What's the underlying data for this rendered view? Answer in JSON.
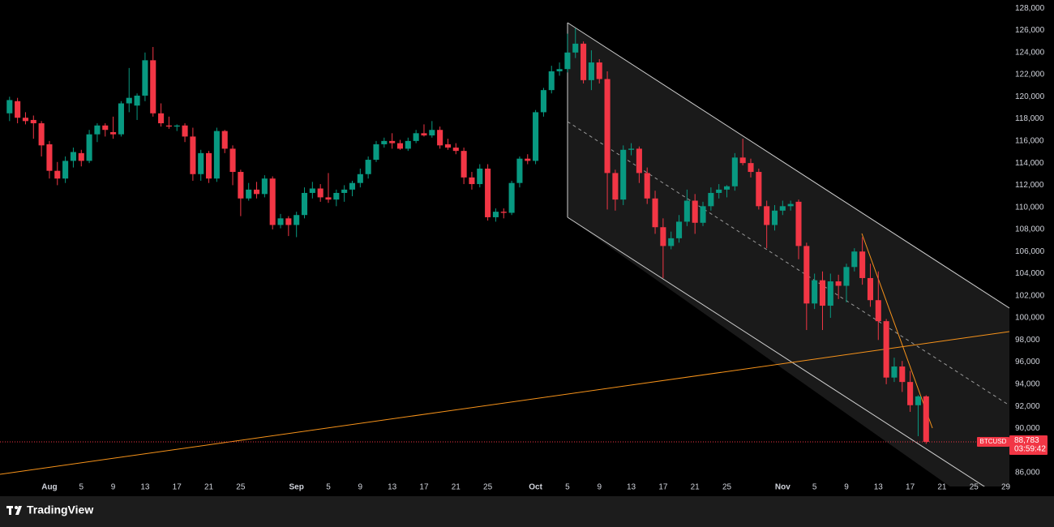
{
  "chart_data": {
    "type": "candlestick",
    "symbol": "BTCUSD",
    "last_price": {
      "value": 88783,
      "label": "88,783"
    },
    "countdown": "03:59:42",
    "up_color": "#089981",
    "down_color": "#f23645",
    "x": [
      -5,
      -4,
      -3,
      -2,
      -1,
      0,
      1,
      2,
      3,
      4,
      5,
      6,
      7,
      8,
      9,
      10,
      11,
      12,
      13,
      14,
      15,
      16,
      17,
      18,
      19,
      20,
      21,
      22,
      23,
      24,
      25,
      26,
      27,
      28,
      29,
      30,
      31,
      32,
      33,
      34,
      35,
      36,
      37,
      38,
      39,
      40,
      41,
      42,
      43,
      44,
      45,
      46,
      47,
      48,
      49,
      50,
      51,
      52,
      53,
      54,
      55,
      56,
      57,
      58,
      59,
      60,
      61,
      62,
      63,
      64,
      65,
      66,
      67,
      68,
      69,
      70,
      71,
      72,
      73,
      74,
      75,
      76,
      77,
      78,
      79,
      80,
      81,
      82,
      83,
      84,
      85,
      86,
      87,
      88,
      89,
      90,
      91,
      92,
      93,
      94,
      95,
      96,
      97,
      98,
      99,
      100,
      101,
      102,
      103,
      104,
      105,
      106,
      107,
      108,
      109,
      110
    ],
    "open": [
      118500,
      119600,
      118100,
      117900,
      117600,
      115700,
      113300,
      112600,
      114200,
      114900,
      114200,
      116600,
      117400,
      116800,
      116600,
      119400,
      119200,
      120100,
      123300,
      118500,
      117400,
      117300,
      117400,
      116400,
      113000,
      114900,
      112600,
      116900,
      115300,
      113200,
      110800,
      111600,
      111200,
      112600,
      108400,
      109000,
      108400,
      109300,
      111300,
      111700,
      110900,
      110700,
      111300,
      111600,
      112200,
      113000,
      114300,
      115700,
      116000,
      115800,
      115300,
      116000,
      116700,
      116500,
      117000,
      115700,
      115400,
      115100,
      112700,
      112100,
      113500,
      109100,
      109600,
      109500,
      112200,
      114400,
      114200,
      118600,
      120600,
      122300,
      122500,
      124000,
      124800,
      121500,
      123100,
      121600,
      113100,
      110700,
      115200,
      115300,
      113100,
      110800,
      108200,
      106500,
      107200,
      108700,
      110600,
      108600,
      110100,
      111300,
      111600,
      111900,
      114500,
      114000,
      113200,
      110100,
      108400,
      109700,
      110100,
      110500,
      106500,
      101300,
      103400,
      101100,
      103300,
      102900,
      104600,
      106000,
      103600,
      101600,
      99700,
      94600,
      95600,
      94200,
      92100,
      92900
    ],
    "high": [
      120000,
      119900,
      118600,
      118300,
      117800,
      116000,
      114100,
      114600,
      115400,
      115200,
      117000,
      117600,
      117600,
      118200,
      119600,
      122600,
      120300,
      124000,
      124500,
      119400,
      118200,
      117500,
      117600,
      117200,
      115200,
      115100,
      117200,
      117000,
      115600,
      113400,
      112200,
      112300,
      112900,
      112800,
      109400,
      109200,
      109600,
      111800,
      112300,
      112100,
      113100,
      111600,
      112000,
      112400,
      113500,
      114600,
      116000,
      116300,
      116700,
      116100,
      116300,
      117000,
      117500,
      117800,
      117300,
      116200,
      115800,
      115400,
      113200,
      113900,
      113900,
      109900,
      109900,
      112400,
      114600,
      114800,
      118800,
      120800,
      122800,
      123100,
      125700,
      126200,
      125000,
      124200,
      123400,
      122300,
      113400,
      115600,
      115800,
      115500,
      113600,
      111500,
      109000,
      107800,
      109300,
      111600,
      111200,
      110500,
      111800,
      112100,
      112000,
      114900,
      116200,
      114400,
      113500,
      110600,
      110200,
      110600,
      110600,
      110700,
      106800,
      104000,
      104200,
      104000,
      103900,
      104900,
      106300,
      107300,
      104900,
      104200,
      99900,
      96400,
      96100,
      95200,
      93000,
      93000
    ],
    "low": [
      117800,
      117600,
      117500,
      116200,
      114600,
      112600,
      112000,
      112200,
      113600,
      113700,
      114000,
      115900,
      116400,
      116200,
      116400,
      118600,
      117900,
      119600,
      118200,
      117300,
      117100,
      116900,
      115900,
      112400,
      112400,
      112200,
      112300,
      114900,
      112000,
      109200,
      110600,
      110800,
      110900,
      108000,
      108100,
      107400,
      107300,
      109000,
      110800,
      110500,
      110400,
      110100,
      110500,
      111000,
      111800,
      112600,
      114100,
      115400,
      115300,
      115200,
      115100,
      115800,
      116400,
      116300,
      115300,
      115200,
      114800,
      112100,
      111600,
      111800,
      108800,
      108700,
      109000,
      109300,
      111800,
      113900,
      113900,
      118200,
      120300,
      121900,
      122200,
      123500,
      121200,
      120600,
      121200,
      109800,
      109700,
      110200,
      114700,
      112200,
      110300,
      107600,
      103600,
      106200,
      106800,
      108300,
      107600,
      108300,
      109700,
      110800,
      110900,
      111500,
      113800,
      112700,
      109800,
      106300,
      107900,
      109300,
      109700,
      105300,
      98900,
      100800,
      98900,
      100000,
      101700,
      101400,
      104200,
      103000,
      101000,
      98000,
      94000,
      94200,
      93300,
      91500,
      89300,
      88600
    ],
    "close": [
      119700,
      118100,
      117800,
      117600,
      115600,
      113300,
      112600,
      114200,
      115000,
      114200,
      116600,
      117400,
      117000,
      116600,
      119400,
      119900,
      120100,
      123300,
      118500,
      117600,
      117300,
      117400,
      116400,
      113000,
      114900,
      112600,
      116900,
      115300,
      113200,
      110800,
      111600,
      111200,
      112600,
      108400,
      109000,
      108400,
      109300,
      111300,
      111700,
      110900,
      110700,
      111300,
      111600,
      112200,
      113000,
      114300,
      115700,
      116000,
      115800,
      115300,
      116000,
      116700,
      116500,
      117000,
      115600,
      115400,
      115100,
      112700,
      112100,
      113500,
      109100,
      109600,
      109500,
      112200,
      114400,
      114200,
      118600,
      120600,
      122300,
      122500,
      124000,
      124800,
      121500,
      123100,
      121600,
      113100,
      110700,
      115200,
      115300,
      113100,
      110800,
      108200,
      106500,
      107200,
      108700,
      110600,
      108600,
      110100,
      111300,
      111600,
      111900,
      114500,
      114000,
      113200,
      110100,
      108400,
      109700,
      110100,
      110300,
      106500,
      101300,
      103400,
      101100,
      103300,
      102900,
      104600,
      106000,
      103600,
      101600,
      99700,
      94600,
      95600,
      94200,
      92100,
      92900,
      88783
    ],
    "xlim": [
      -6.2,
      120.45
    ],
    "xticks": [
      {
        "value": 0,
        "label": "Aug"
      },
      {
        "value": 4,
        "label": "5"
      },
      {
        "value": 8,
        "label": "9"
      },
      {
        "value": 12,
        "label": "13"
      },
      {
        "value": 16,
        "label": "17"
      },
      {
        "value": 20,
        "label": "21"
      },
      {
        "value": 24,
        "label": "25"
      },
      {
        "value": 31,
        "label": "Sep"
      },
      {
        "value": 35,
        "label": "5"
      },
      {
        "value": 39,
        "label": "9"
      },
      {
        "value": 43,
        "label": "13"
      },
      {
        "value": 47,
        "label": "17"
      },
      {
        "value": 51,
        "label": "21"
      },
      {
        "value": 55,
        "label": "25"
      },
      {
        "value": 61,
        "label": "Oct"
      },
      {
        "value": 65,
        "label": "5"
      },
      {
        "value": 69,
        "label": "9"
      },
      {
        "value": 73,
        "label": "13"
      },
      {
        "value": 77,
        "label": "17"
      },
      {
        "value": 81,
        "label": "21"
      },
      {
        "value": 85,
        "label": "25"
      },
      {
        "value": 92,
        "label": "Nov"
      },
      {
        "value": 96,
        "label": "5"
      },
      {
        "value": 100,
        "label": "9"
      },
      {
        "value": 104,
        "label": "13"
      },
      {
        "value": 108,
        "label": "17"
      },
      {
        "value": 112,
        "label": "21"
      },
      {
        "value": 116,
        "label": "25"
      },
      {
        "value": 120,
        "label": "29"
      }
    ],
    "ylim": [
      84750,
      128750
    ],
    "yticks": [
      {
        "value": 86000,
        "label": "86,000"
      },
      {
        "value": 88000,
        "label": "88,000"
      },
      {
        "value": 90000,
        "label": "90,000"
      },
      {
        "value": 92000,
        "label": "92,000"
      },
      {
        "value": 94000,
        "label": "94,000"
      },
      {
        "value": 96000,
        "label": "96,000"
      },
      {
        "value": 98000,
        "label": "98,000"
      },
      {
        "value": 100000,
        "label": "100,000"
      },
      {
        "value": 102000,
        "label": "102,000"
      },
      {
        "value": 104000,
        "label": "104,000"
      },
      {
        "value": 106000,
        "label": "106,000"
      },
      {
        "value": 108000,
        "label": "108,000"
      },
      {
        "value": 110000,
        "label": "110,000"
      },
      {
        "value": 112000,
        "label": "112,000"
      },
      {
        "value": 114000,
        "label": "114,000"
      },
      {
        "value": 116000,
        "label": "116,000"
      },
      {
        "value": 118000,
        "label": "118,000"
      },
      {
        "value": 120000,
        "label": "120,000"
      },
      {
        "value": 122000,
        "label": "122,000"
      },
      {
        "value": 124000,
        "label": "124,000"
      },
      {
        "value": 126000,
        "label": "126,000"
      },
      {
        "value": 128000,
        "label": "128,000"
      }
    ]
  },
  "footer": {
    "brand": "TradingView"
  }
}
